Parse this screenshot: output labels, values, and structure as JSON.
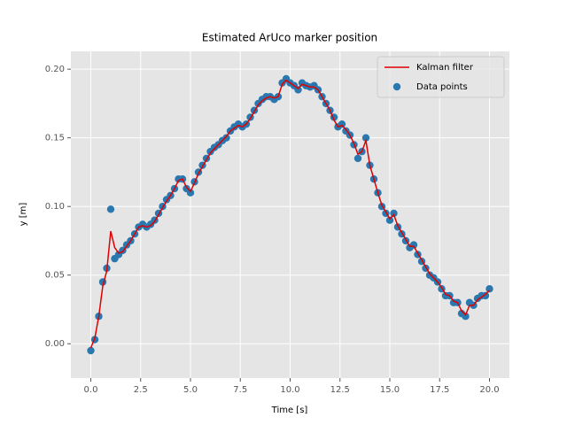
{
  "chart_data": {
    "type": "scatter_line",
    "title": "Estimated ArUco marker position",
    "x_label": "Time [s]",
    "y_label": "y [m]",
    "xlim": [
      -1,
      21
    ],
    "ylim": [
      -0.025,
      0.213
    ],
    "xticks": [
      {
        "value": 0,
        "label": "0.0"
      },
      {
        "value": 2.5,
        "label": "2.5"
      },
      {
        "value": 5,
        "label": "5.0"
      },
      {
        "value": 7.5,
        "label": "7.5"
      },
      {
        "value": 10,
        "label": "10.0"
      },
      {
        "value": 12.5,
        "label": "12.5"
      },
      {
        "value": 15,
        "label": "15.0"
      },
      {
        "value": 17.5,
        "label": "17.5"
      },
      {
        "value": 20,
        "label": "20.0"
      }
    ],
    "yticks": [
      {
        "value": 0,
        "label": "0.00"
      },
      {
        "value": 0.05,
        "label": "0.05"
      },
      {
        "value": 0.1,
        "label": "0.10"
      },
      {
        "value": 0.15,
        "label": "0.15"
      },
      {
        "value": 0.2,
        "label": "0.20"
      }
    ],
    "grid": true,
    "legend": "upper right",
    "x": [
      0,
      0.2,
      0.4,
      0.6,
      0.8,
      1,
      1.2,
      1.4,
      1.6,
      1.8,
      2,
      2.2,
      2.4,
      2.6,
      2.8,
      3,
      3.2,
      3.4,
      3.6,
      3.8,
      4,
      4.2,
      4.4,
      4.6,
      4.8,
      5,
      5.2,
      5.4,
      5.6,
      5.8,
      6,
      6.2,
      6.4,
      6.6,
      6.8,
      7,
      7.2,
      7.4,
      7.6,
      7.8,
      8,
      8.2,
      8.4,
      8.6,
      8.8,
      9,
      9.2,
      9.4,
      9.6,
      9.8,
      10,
      10.2,
      10.4,
      10.6,
      10.8,
      11,
      11.2,
      11.4,
      11.6,
      11.8,
      12,
      12.2,
      12.4,
      12.6,
      12.8,
      13,
      13.2,
      13.4,
      13.6,
      13.8,
      14,
      14.2,
      14.4,
      14.6,
      14.8,
      15,
      15.2,
      15.4,
      15.6,
      15.8,
      16,
      16.2,
      16.4,
      16.6,
      16.8,
      17,
      17.2,
      17.4,
      17.6,
      17.8,
      18,
      18.2,
      18.4,
      18.6,
      18.8,
      19,
      19.2,
      19.4,
      19.6,
      19.8,
      20
    ],
    "series": [
      {
        "name": "Kalman filter",
        "kind": "line",
        "color": "#e00000",
        "values": [
          -0.003,
          0.004,
          0.02,
          0.042,
          0.053,
          0.082,
          0.07,
          0.066,
          0.067,
          0.071,
          0.075,
          0.08,
          0.085,
          0.086,
          0.085,
          0.086,
          0.089,
          0.094,
          0.099,
          0.104,
          0.108,
          0.113,
          0.119,
          0.12,
          0.114,
          0.111,
          0.117,
          0.124,
          0.129,
          0.134,
          0.139,
          0.142,
          0.145,
          0.148,
          0.151,
          0.155,
          0.157,
          0.159,
          0.158,
          0.16,
          0.164,
          0.169,
          0.174,
          0.177,
          0.179,
          0.18,
          0.179,
          0.18,
          0.189,
          0.192,
          0.19,
          0.188,
          0.186,
          0.189,
          0.188,
          0.187,
          0.187,
          0.185,
          0.18,
          0.175,
          0.17,
          0.163,
          0.158,
          0.159,
          0.156,
          0.152,
          0.146,
          0.138,
          0.14,
          0.148,
          0.13,
          0.12,
          0.11,
          0.101,
          0.096,
          0.091,
          0.094,
          0.086,
          0.081,
          0.076,
          0.071,
          0.071,
          0.066,
          0.061,
          0.056,
          0.051,
          0.048,
          0.045,
          0.041,
          0.036,
          0.035,
          0.031,
          0.03,
          0.024,
          0.021,
          0.028,
          0.028,
          0.032,
          0.034,
          0.036,
          0.039
        ]
      },
      {
        "name": "Data points",
        "kind": "scatter",
        "color": "#2a78b0",
        "values": [
          -0.005,
          0.003,
          0.02,
          0.045,
          0.055,
          0.098,
          0.062,
          0.065,
          0.068,
          0.072,
          0.075,
          0.08,
          0.085,
          0.087,
          0.085,
          0.087,
          0.09,
          0.095,
          0.1,
          0.105,
          0.108,
          0.113,
          0.12,
          0.12,
          0.113,
          0.11,
          0.118,
          0.125,
          0.13,
          0.135,
          0.14,
          0.143,
          0.145,
          0.148,
          0.15,
          0.155,
          0.158,
          0.16,
          0.158,
          0.16,
          0.165,
          0.17,
          0.175,
          0.178,
          0.18,
          0.18,
          0.178,
          0.18,
          0.19,
          0.193,
          0.19,
          0.188,
          0.185,
          0.19,
          0.188,
          0.187,
          0.188,
          0.185,
          0.18,
          0.175,
          0.17,
          0.165,
          0.158,
          0.16,
          0.155,
          0.152,
          0.145,
          0.135,
          0.14,
          0.15,
          0.13,
          0.12,
          0.11,
          0.1,
          0.095,
          0.09,
          0.095,
          0.085,
          0.08,
          0.075,
          0.07,
          0.072,
          0.065,
          0.06,
          0.055,
          0.05,
          0.048,
          0.045,
          0.04,
          0.035,
          0.035,
          0.03,
          0.03,
          0.022,
          0.02,
          0.03,
          0.028,
          0.033,
          0.035,
          0.035,
          0.04
        ]
      }
    ]
  }
}
